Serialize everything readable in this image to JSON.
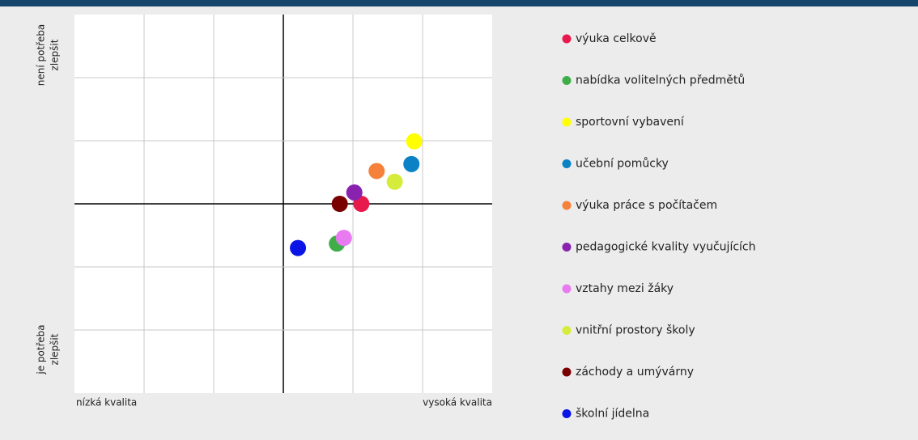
{
  "chart_data": {
    "type": "scatter",
    "x_label_left": "nízká kvalita",
    "x_label_right": "vysoká kvalita",
    "y_label_top": [
      "není potřeba",
      "zlepšit"
    ],
    "y_label_bottom": [
      "je potřeba",
      "zlepšit"
    ],
    "xlim": [
      -3,
      3
    ],
    "ylim": [
      -3,
      3
    ],
    "xticks": [
      -2,
      -1,
      0,
      1,
      2
    ],
    "yticks": [
      -2,
      -1,
      0,
      1,
      2
    ],
    "grid": true,
    "series": [
      {
        "name": "výuka celkově",
        "color": "#e8194b",
        "x": [
          1.12
        ],
        "values": [
          0
        ]
      },
      {
        "name": "nabídka volitelných předmětů",
        "color": "#3fae49",
        "x": [
          0.77
        ],
        "values": [
          -0.63
        ]
      },
      {
        "name": "sportovní vybavení",
        "color": "#ffff00",
        "x": [
          1.88
        ],
        "values": [
          0.99
        ]
      },
      {
        "name": "učební pomůcky",
        "color": "#0b82c6",
        "x": [
          1.84
        ],
        "values": [
          0.63
        ]
      },
      {
        "name": "výuka práce s počítačem",
        "color": "#f5813a",
        "x": [
          1.34
        ],
        "values": [
          0.52
        ]
      },
      {
        "name": "pedagogické kvality vyučujících",
        "color": "#8a22b0",
        "x": [
          1.02
        ],
        "values": [
          0.18
        ]
      },
      {
        "name": "vztahy mezi žáky",
        "color": "#e77bef",
        "x": [
          0.87
        ],
        "values": [
          -0.54
        ]
      },
      {
        "name": "vnitřní prostory školy",
        "color": "#d6ec3c",
        "x": [
          1.6
        ],
        "values": [
          0.35
        ]
      },
      {
        "name": "záchody a umývárny",
        "color": "#7a0000",
        "x": [
          0.81
        ],
        "values": [
          0
        ]
      },
      {
        "name": "školní jídelna",
        "color": "#0a14e6",
        "x": [
          0.21
        ],
        "values": [
          -0.7
        ]
      }
    ]
  }
}
